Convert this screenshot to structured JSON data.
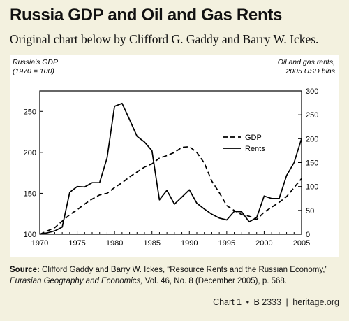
{
  "header": {
    "title": "Russia GDP and Oil and Gas Rents",
    "subtitle": "Original chart below by Clifford G. Gaddy and Barry W. Ickes."
  },
  "chart_data": {
    "type": "line",
    "ylabel_left": [
      "Russia's GDP",
      "(1970 = 100)"
    ],
    "ylabel_right": [
      "Oil and gas rents,",
      "2005 USD blns"
    ],
    "xlim": [
      1970,
      2005
    ],
    "ylim_left": [
      100,
      275
    ],
    "ylim_right": [
      0,
      300
    ],
    "x_ticks": [
      "1970",
      "1975",
      "1980",
      "1985",
      "1990",
      "1995",
      "2000",
      "2005"
    ],
    "y_ticks_left": [
      "100",
      "150",
      "200",
      "250"
    ],
    "y_ticks_right": [
      "0",
      "50",
      "100",
      "150",
      "200",
      "250",
      "300"
    ],
    "legend_position": "center-right",
    "series": [
      {
        "name": "GDP",
        "axis": "left",
        "style": "dashed",
        "x": [
          1970,
          1971,
          1972,
          1973,
          1974,
          1975,
          1976,
          1977,
          1978,
          1979,
          1980,
          1981,
          1982,
          1983,
          1984,
          1985,
          1986,
          1987,
          1988,
          1989,
          1990,
          1991,
          1992,
          1993,
          1994,
          1995,
          1996,
          1997,
          1998,
          1999,
          2000,
          2001,
          2002,
          2003,
          2004,
          2005
        ],
        "values": [
          100,
          104,
          108,
          116,
          124,
          130,
          137,
          143,
          148,
          150,
          157,
          163,
          170,
          176,
          182,
          186,
          193,
          196,
          200,
          206,
          207,
          200,
          187,
          165,
          151,
          135,
          129,
          124,
          122,
          118,
          127,
          133,
          139,
          146,
          157,
          168
        ]
      },
      {
        "name": "Rents",
        "axis": "right",
        "style": "solid",
        "x": [
          1970,
          1971,
          1972,
          1973,
          1974,
          1975,
          1976,
          1977,
          1978,
          1979,
          1980,
          1981,
          1982,
          1983,
          1984,
          1985,
          1986,
          1987,
          1988,
          1989,
          1990,
          1991,
          1992,
          1993,
          1994,
          1995,
          1996,
          1997,
          1998,
          1999,
          2000,
          2001,
          2002,
          2003,
          2004,
          2005
        ],
        "values": [
          0,
          3,
          7,
          15,
          88,
          100,
          99,
          108,
          108,
          160,
          268,
          274,
          240,
          205,
          193,
          175,
          72,
          92,
          63,
          78,
          93,
          65,
          53,
          42,
          34,
          30,
          48,
          47,
          26,
          35,
          80,
          75,
          75,
          123,
          150,
          200
        ]
      }
    ]
  },
  "source": {
    "label": "Source:",
    "text": "Clifford Gaddy and Barry W. Ickes, “Resource Rents and the Russian Economy,”",
    "journal": "Eurasian Geography and Economics,",
    "details": "Vol. 46, No. 8 (December 2005), p. 568."
  },
  "footer": {
    "chart_label": "Chart 1",
    "bullet": "•",
    "code": "B 2333",
    "site": "heritage.org"
  }
}
